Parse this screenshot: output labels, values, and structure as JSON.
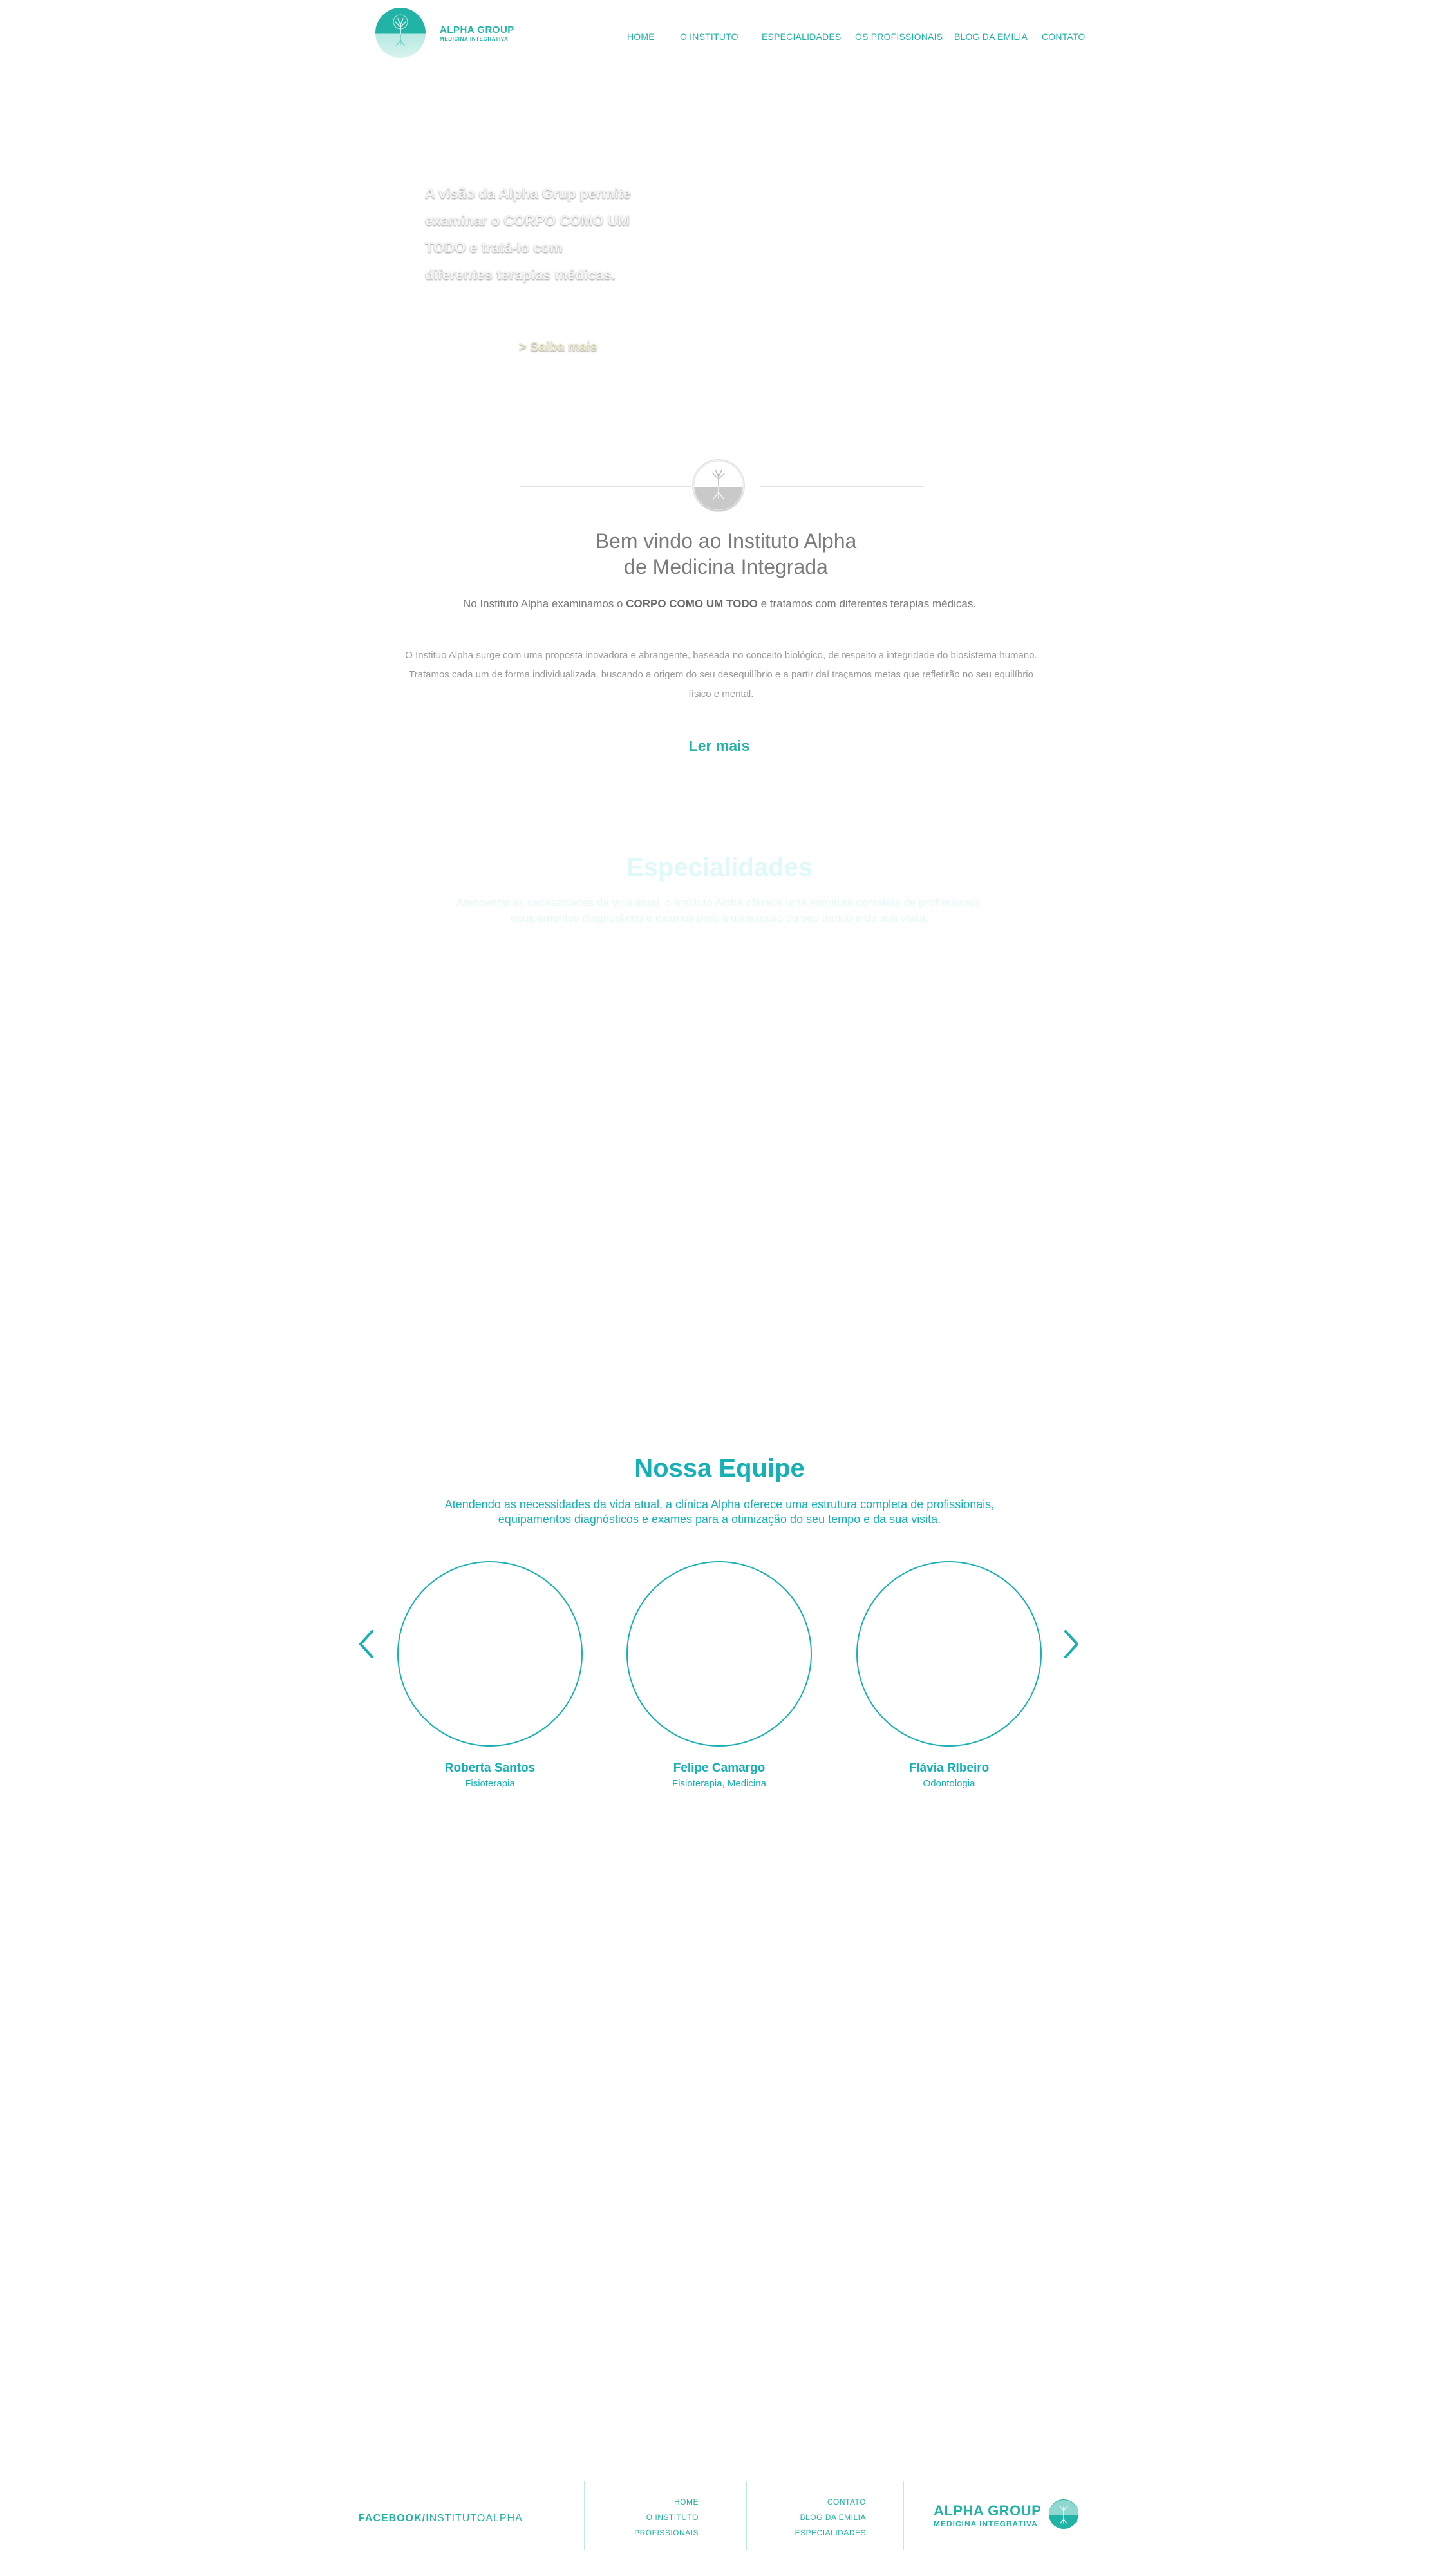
{
  "brand": {
    "name": "ALPHA GROUP",
    "tagline": "MEDICINA INTEGRATIVA",
    "accent_color": "#21b3a5",
    "logo_icon": "tree-logo-icon"
  },
  "nav": {
    "items": [
      {
        "label": "HOME"
      },
      {
        "label": "O INSTITUTO"
      },
      {
        "label": "ESPECIALIDADES"
      },
      {
        "label": "OS PROFISSIONAIS"
      },
      {
        "label": "BLOG DA EMILIA"
      },
      {
        "label": "CONTATO"
      }
    ]
  },
  "hero": {
    "text": "A visão da Alpha Grup permite examinar o CORPO COMO UM TODO e tratá-lo com diferentes terapias médicas.",
    "link": "> Saiba mais"
  },
  "welcome": {
    "title_line1": "Bem vindo ao Instituto Alpha",
    "title_line2": "de Medicina Integrada",
    "lead_before": "No Instituto Alpha examinamos o ",
    "lead_bold": "CORPO COMO UM TODO",
    "lead_after": " e tratamos com diferentes terapias médicas.",
    "body": "O Instituo Alpha surge com uma proposta inovadora e abrangente, baseada no conceito biológico, de respeito a integridade do biosistema humano. Tratamos cada um de forma individualizada, buscando a origem do seu desequilíbrio e a partir daí traçamos metas que refletirão no seu equilíbrio físico e mental.",
    "read_more": "Ler mais"
  },
  "specialties": {
    "title": "Especialidades",
    "subtitle": "Atendendo as necessidades da vida atual, o Instituto Alpha oferece uma estrutura completa de profissionais, equipamentos diagnósticos e exames para a otimização do seu tempo e da sua visita."
  },
  "team": {
    "title": "Nossa Equipe",
    "subtitle": "Atendendo as necessidades da vida atual, a clínica Alpha oferece uma estrutura completa de profissionais, equipamentos diagnósticos e exames para a otimização do seu tempo e da sua visita.",
    "prev_icon": "chevron-left-icon",
    "next_icon": "chevron-right-icon",
    "members": [
      {
        "name": "Roberta Santos",
        "role": "Fisioterapia"
      },
      {
        "name": "Felipe Camargo",
        "role": "Fisioterapia, Medicina"
      },
      {
        "name": "Flávia RIbeiro",
        "role": "Odontologia"
      }
    ]
  },
  "footer": {
    "facebook_bold": "FACEBOOK/",
    "facebook_thin": "INSTITUTOALPHA",
    "links_col1": [
      "HOME",
      "O INSTITUTO",
      "PROFISSIONAIS"
    ],
    "links_col2": [
      "CONTATO",
      "BLOG DA EMILIA",
      "ESPECIALIDADES"
    ],
    "brand_name": "ALPHA GROUP",
    "brand_tagline": "MEDICINA INTEGRATIVA"
  }
}
